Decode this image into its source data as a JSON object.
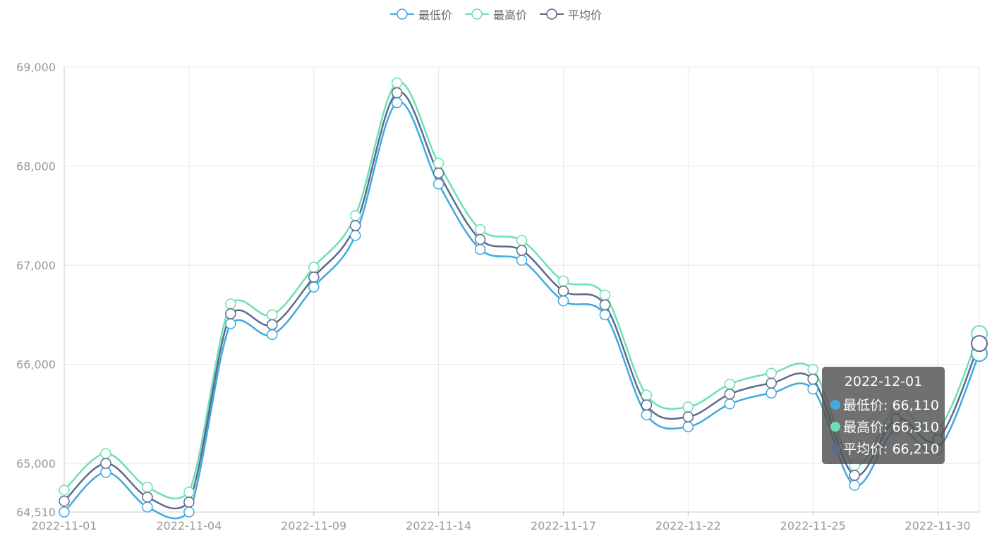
{
  "legend": [
    {
      "label": "最低价",
      "color": "#41a9df"
    },
    {
      "label": "最高价",
      "color": "#6ddfb6"
    },
    {
      "label": "平均价",
      "color": "#5c6a8c"
    }
  ],
  "tooltip": {
    "title": "2022-12-01",
    "rows": [
      {
        "label": "最低价: 66,110",
        "color": "#41a9df"
      },
      {
        "label": "最高价: 66,310",
        "color": "#6ddfb6"
      },
      {
        "label": "平均价: 66,210",
        "color": "#5c6a8c"
      }
    ]
  },
  "chart_data": {
    "type": "line",
    "smooth": true,
    "x": [
      "2022-11-01",
      "2022-11-02",
      "2022-11-03",
      "2022-11-04",
      "2022-11-07",
      "2022-11-08",
      "2022-11-09",
      "2022-11-10",
      "2022-11-11",
      "2022-11-14",
      "2022-11-15",
      "2022-11-16",
      "2022-11-17",
      "2022-11-18",
      "2022-11-21",
      "2022-11-22",
      "2022-11-23",
      "2022-11-24",
      "2022-11-25",
      "2022-11-28",
      "2022-11-29",
      "2022-11-30",
      "2022-12-01"
    ],
    "x_tick_labels": [
      "2022-11-01",
      "2022-11-04",
      "2022-11-09",
      "2022-11-14",
      "2022-11-17",
      "2022-11-22",
      "2022-11-25",
      "2022-11-30"
    ],
    "x_tick_indices": [
      0,
      3,
      6,
      9,
      12,
      15,
      18,
      21
    ],
    "y_ticks": [
      64510,
      65000,
      66000,
      67000,
      68000,
      69000
    ],
    "y_tick_labels": [
      "64,510",
      "65,000",
      "66,000",
      "67,000",
      "68,000",
      "69,000"
    ],
    "ylim": [
      64510,
      69000
    ],
    "grid": true,
    "legend_position": "top-center",
    "series": [
      {
        "name": "最低价",
        "color": "#41a9df",
        "values": [
          64510,
          64910,
          64560,
          64510,
          66410,
          66300,
          66780,
          67300,
          68640,
          67820,
          67160,
          67050,
          66640,
          66500,
          65490,
          65370,
          65600,
          65710,
          65750,
          64780,
          65350,
          65140,
          66110
        ]
      },
      {
        "name": "最高价",
        "color": "#6ddfb6",
        "values": [
          64730,
          65100,
          64760,
          64710,
          66610,
          66500,
          66980,
          67500,
          68840,
          68030,
          67360,
          67250,
          66840,
          66700,
          65690,
          65570,
          65800,
          65910,
          65950,
          64980,
          65550,
          65340,
          66310
        ]
      },
      {
        "name": "平均价",
        "color": "#5c6a8c",
        "values": [
          64620,
          65000,
          64660,
          64610,
          66510,
          66400,
          66880,
          67400,
          68740,
          67930,
          67260,
          67150,
          66740,
          66600,
          65590,
          65470,
          65700,
          65810,
          65850,
          64880,
          65450,
          65240,
          66210
        ]
      }
    ]
  }
}
